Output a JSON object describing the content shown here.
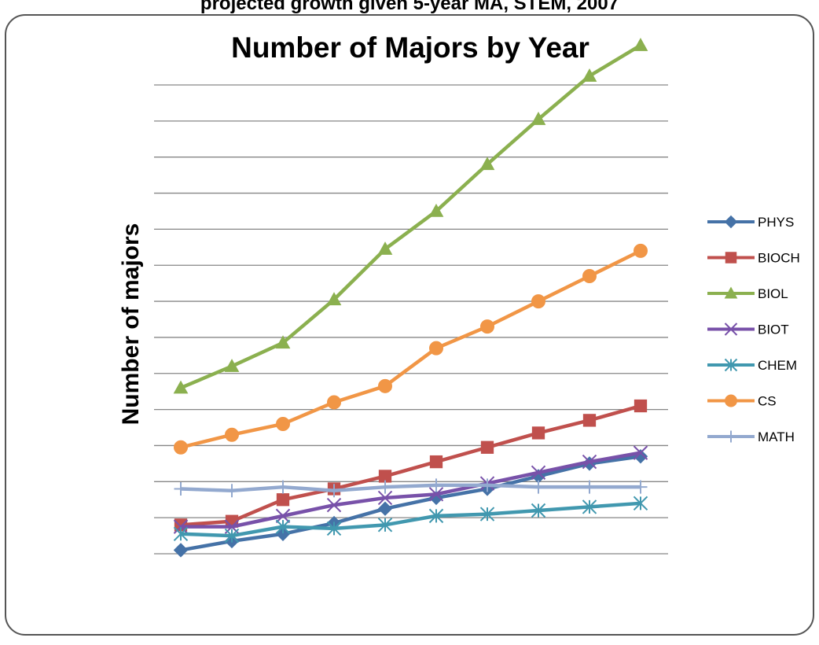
{
  "caption": "projected growth given 5-year MA, STEM, 2007",
  "chart_data": {
    "type": "line",
    "title": "Number of Majors by Year",
    "xlabel": "",
    "ylabel": "Number of majors",
    "ylim": [
      0,
      260
    ],
    "grid": true,
    "legend_position": "right",
    "x": [
      1,
      2,
      3,
      4,
      5,
      6,
      7,
      8,
      9,
      10
    ],
    "series": [
      {
        "name": "PHYS",
        "color": "#4572a7",
        "marker": "diamond",
        "values": [
          2,
          7,
          11,
          17,
          25,
          31,
          36,
          43,
          50,
          54
        ]
      },
      {
        "name": "BIOCH",
        "color": "#c0504d",
        "marker": "square",
        "values": [
          16,
          18,
          30,
          36,
          43,
          51,
          59,
          67,
          74,
          82
        ]
      },
      {
        "name": "BIOL",
        "color": "#8bb04f",
        "marker": "triangle",
        "values": [
          92,
          104,
          117,
          141,
          169,
          190,
          216,
          241,
          265,
          282
        ]
      },
      {
        "name": "BIOT",
        "color": "#7851a9",
        "marker": "x",
        "values": [
          15,
          15,
          21,
          27,
          31,
          33,
          39,
          45,
          51,
          56
        ]
      },
      {
        "name": "CHEM",
        "color": "#4198af",
        "marker": "asterisk",
        "values": [
          11,
          10,
          15,
          14,
          16,
          21,
          22,
          24,
          26,
          28
        ]
      },
      {
        "name": "CS",
        "color": "#f19646",
        "marker": "circle",
        "values": [
          59,
          66,
          72,
          84,
          93,
          114,
          126,
          140,
          154,
          168
        ]
      },
      {
        "name": "MATH",
        "color": "#93a9cf",
        "marker": "plus",
        "values": [
          36,
          35,
          37,
          35,
          37,
          38,
          38,
          37,
          37,
          37
        ]
      }
    ]
  }
}
